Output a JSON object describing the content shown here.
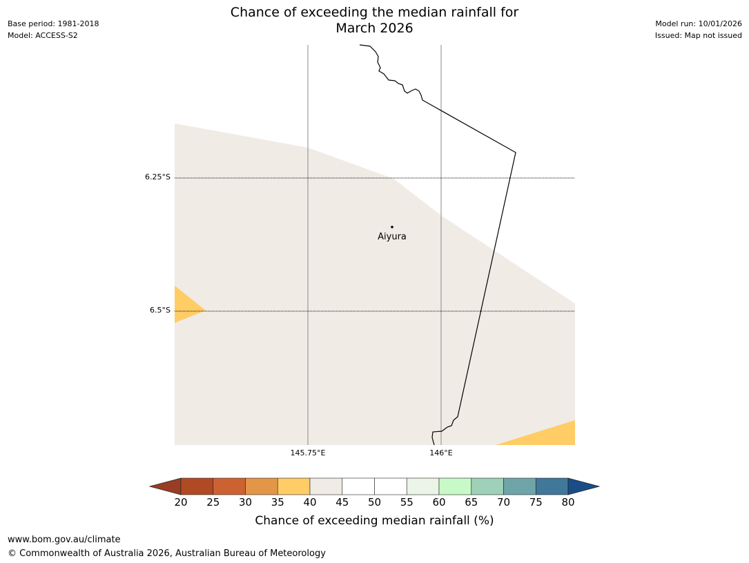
{
  "header": {
    "title_line1": "Chance of exceeding the median rainfall for",
    "title_line2": "March 2026",
    "base_period": "Base period: 1981-2018",
    "model": "Model: ACCESS-S2",
    "model_run": "Model run: 10/01/2026",
    "issued": "Issued: Map not issued"
  },
  "map": {
    "latitude_labels": [
      "6.25°S",
      "6.5°S"
    ],
    "longitude_labels": [
      "145.75°E",
      "146°E"
    ],
    "town": {
      "name": "Aiyura"
    },
    "region_colors": {
      "band_40_45": "#f0ebe5",
      "band_35_40": "#ffcc66",
      "coastline": "#000000",
      "gridline": "#888888"
    }
  },
  "colorbar": {
    "title": "Chance of exceeding median rainfall (%)",
    "ticks": [
      "20",
      "25",
      "30",
      "35",
      "40",
      "45",
      "50",
      "55",
      "60",
      "65",
      "70",
      "75",
      "80"
    ],
    "colors": [
      "#b04a25",
      "#cc6232",
      "#e39548",
      "#ffcc66",
      "#f0ebe5",
      "#ffffff",
      "#ffffff",
      "#eaf5e8",
      "#c8fac8",
      "#9fd0b8",
      "#6fa5a8",
      "#3f7899"
    ],
    "under_color": "#993d24",
    "over_color": "#1a4d88"
  },
  "footer": {
    "url": "www.bom.gov.au/climate",
    "copyright": "© Commonwealth of Australia 2026, Australian Bureau of Meteorology"
  }
}
